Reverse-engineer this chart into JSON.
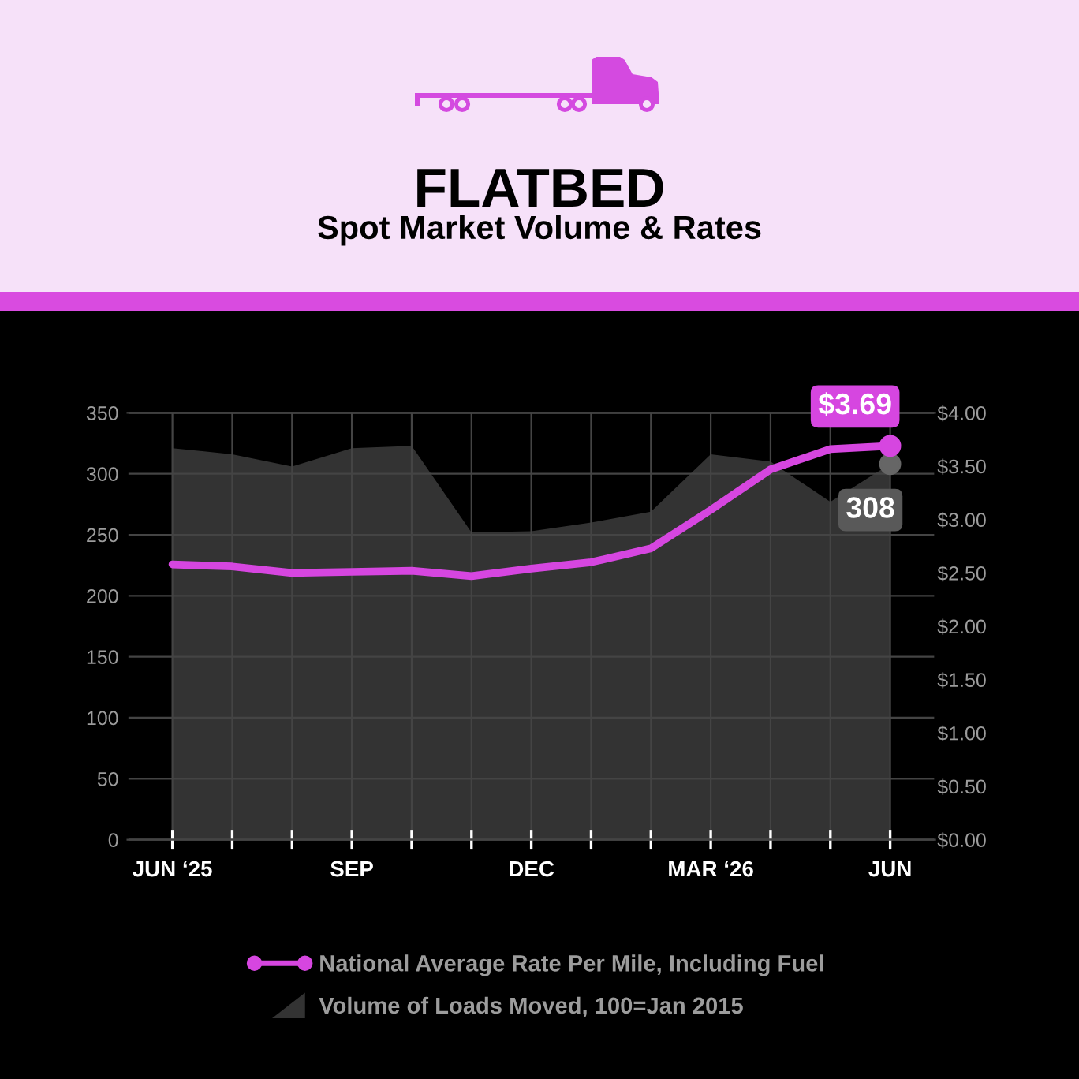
{
  "chart_data": {
    "type": "line",
    "title": "FLATBED",
    "subtitle": "Spot Market Volume & Rates",
    "categories": [
      "JUN ‘25",
      null,
      null,
      "SEP",
      null,
      null,
      "DEC",
      null,
      null,
      "MAR ‘26",
      null,
      null,
      "JUN"
    ],
    "series": [
      {
        "name": "National Average Rate Per Mile, Including Fuel",
        "axis": "y2",
        "color": "#d646e0",
        "values": [
          2.58,
          2.56,
          2.5,
          2.51,
          2.52,
          2.47,
          2.54,
          2.6,
          2.73,
          3.09,
          3.47,
          3.66,
          3.69
        ],
        "value_labels": [
          null,
          null,
          null,
          null,
          null,
          null,
          null,
          null,
          null,
          null,
          null,
          null,
          "$3.69"
        ]
      },
      {
        "name": "Volume of Loads Moved, 100=Jan 2015",
        "type": "area",
        "axis": "y",
        "color": "#333333",
        "values": [
          321,
          316,
          306,
          321,
          323,
          252,
          253,
          260,
          269,
          316,
          310,
          277,
          308
        ],
        "value_labels": [
          null,
          null,
          null,
          null,
          null,
          null,
          null,
          null,
          null,
          null,
          null,
          null,
          "308"
        ]
      }
    ],
    "ylim": [
      0,
      350
    ],
    "yticks": [
      0,
      50,
      100,
      150,
      200,
      250,
      300,
      350
    ],
    "y2lim": [
      0,
      4
    ],
    "y2ticks": [
      {
        "value": 0,
        "label": "$0.00"
      },
      {
        "value": 0.5,
        "label": "$0.50"
      },
      {
        "value": 1,
        "label": "$1.00"
      },
      {
        "value": 1.5,
        "label": "$1.50"
      },
      {
        "value": 2,
        "label": "$2.00"
      },
      {
        "value": 2.5,
        "label": "$2.50"
      },
      {
        "value": 3,
        "label": "$3.00"
      },
      {
        "value": 3.5,
        "label": "$3.50"
      },
      {
        "value": 4,
        "label": "$4.00"
      }
    ],
    "grid": true,
    "legend": "bottom"
  }
}
